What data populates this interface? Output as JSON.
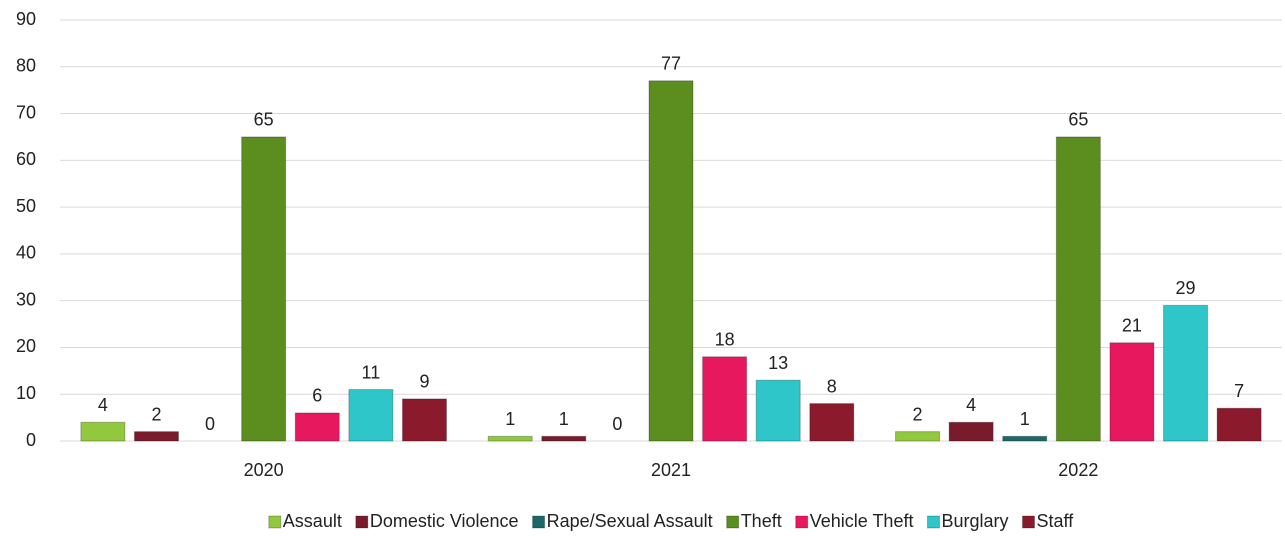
{
  "chart_data": {
    "type": "bar",
    "categories": [
      "2020",
      "2021",
      "2022"
    ],
    "series": [
      {
        "name": "Assault",
        "color": "#92c83e",
        "values": [
          4,
          1,
          2
        ]
      },
      {
        "name": "Domestic Violence",
        "color": "#7a1b2c",
        "values": [
          2,
          1,
          4
        ]
      },
      {
        "name": "Rape/Sexual Assault",
        "color": "#1d6767",
        "values": [
          0,
          0,
          1
        ]
      },
      {
        "name": "Theft",
        "color": "#5b8d1f",
        "values": [
          65,
          77,
          65
        ]
      },
      {
        "name": "Vehicle Theft",
        "color": "#e8185e",
        "values": [
          6,
          18,
          21
        ]
      },
      {
        "name": "Burglary",
        "color": "#2ec6c8",
        "values": [
          11,
          13,
          29
        ]
      },
      {
        "name": "Staff",
        "color": "#8c1a2d",
        "values": [
          9,
          8,
          7
        ]
      }
    ],
    "ylim": [
      0,
      90
    ],
    "yticks": [
      0,
      10,
      20,
      30,
      40,
      50,
      60,
      70,
      80,
      90
    ],
    "grid": true,
    "legend": "bottom"
  }
}
